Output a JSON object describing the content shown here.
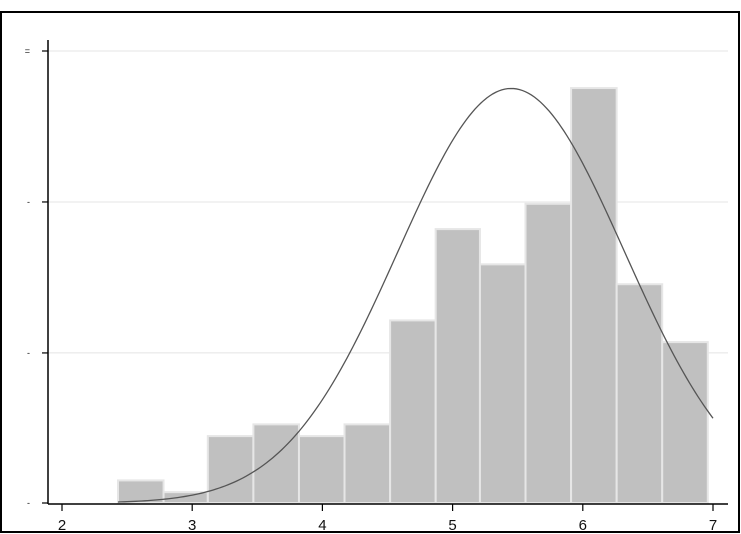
{
  "chart_data": {
    "type": "bar",
    "title": "",
    "xlabel": "",
    "ylabel": "",
    "xlim": [
      2,
      7
    ],
    "ylim": [
      0,
      0.5
    ],
    "x_ticks": [
      2,
      3,
      4,
      5,
      6,
      7
    ],
    "y_tick_values": [
      0,
      0.166,
      0.333,
      0.5
    ],
    "y_tick_labels": [
      "-",
      "-",
      "-",
      "="
    ],
    "grid": true,
    "bin_edges": [
      2.43,
      2.78,
      3.12,
      3.47,
      3.82,
      4.17,
      4.52,
      4.87,
      5.21,
      5.56,
      5.91,
      6.26,
      6.61,
      6.96
    ],
    "series": [
      {
        "values": [
          0.025,
          0.012,
          0.074,
          0.087,
          0.074,
          0.087,
          0.202,
          0.303,
          0.264,
          0.331,
          0.459,
          0.242,
          0.178
        ]
      }
    ],
    "overlay_curve": {
      "type": "normal_density",
      "mean": 5.45,
      "sd": 0.87,
      "x_range": [
        2.43,
        7.0
      ]
    },
    "colors": {
      "bar_fill": "#c0c0c0",
      "bar_edge": "#e6e6e6",
      "curve": "#555555",
      "grid": "#e4e4e4",
      "axis": "#000000"
    }
  }
}
